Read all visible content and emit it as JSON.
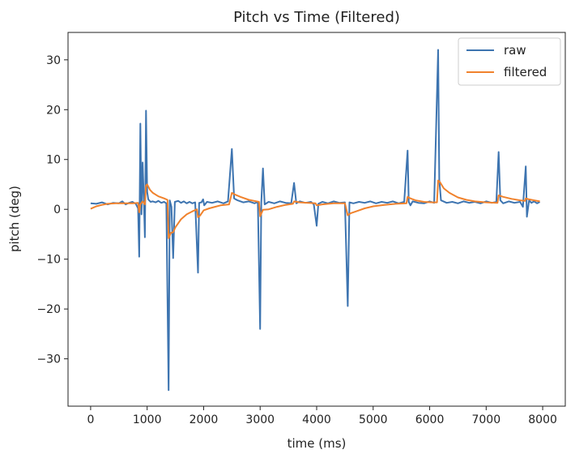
{
  "chart_data": {
    "type": "line",
    "title": "Pitch vs Time (Filtered)",
    "xlabel": "time (ms)",
    "ylabel": "pitch (deg)",
    "xlim": [
      -400,
      8400
    ],
    "ylim": [
      -39.5,
      35.5
    ],
    "xticks": [
      0,
      1000,
      2000,
      3000,
      4000,
      5000,
      6000,
      7000,
      8000
    ],
    "yticks": [
      -30,
      -20,
      -10,
      0,
      10,
      20,
      30
    ],
    "grid": false,
    "legend_position": "top-right",
    "series": [
      {
        "name": "raw",
        "color": "#3d74b0",
        "points": [
          [
            0,
            1.2
          ],
          [
            100,
            1.1
          ],
          [
            200,
            1.4
          ],
          [
            300,
            1.0
          ],
          [
            400,
            1.3
          ],
          [
            500,
            1.2
          ],
          [
            560,
            1.6
          ],
          [
            620,
            1.0
          ],
          [
            680,
            1.3
          ],
          [
            740,
            1.5
          ],
          [
            800,
            1.1
          ],
          [
            840,
            0.2
          ],
          [
            860,
            -9.5
          ],
          [
            880,
            17.2
          ],
          [
            900,
            -1.0
          ],
          [
            920,
            9.4
          ],
          [
            940,
            2.5
          ],
          [
            960,
            -5.6
          ],
          [
            980,
            19.8
          ],
          [
            1000,
            3.5
          ],
          [
            1020,
            2.0
          ],
          [
            1060,
            1.5
          ],
          [
            1100,
            1.6
          ],
          [
            1150,
            1.4
          ],
          [
            1200,
            1.7
          ],
          [
            1250,
            1.3
          ],
          [
            1300,
            1.5
          ],
          [
            1340,
            1.2
          ],
          [
            1380,
            -36.3
          ],
          [
            1400,
            1.8
          ],
          [
            1430,
            0.5
          ],
          [
            1460,
            -9.8
          ],
          [
            1490,
            1.5
          ],
          [
            1550,
            1.7
          ],
          [
            1600,
            1.3
          ],
          [
            1650,
            1.6
          ],
          [
            1700,
            1.2
          ],
          [
            1750,
            1.5
          ],
          [
            1800,
            1.2
          ],
          [
            1850,
            1.4
          ],
          [
            1900,
            -12.7
          ],
          [
            1920,
            1.3
          ],
          [
            1960,
            1.4
          ],
          [
            1990,
            2.0
          ],
          [
            2010,
            0.8
          ],
          [
            2060,
            1.5
          ],
          [
            2150,
            1.3
          ],
          [
            2250,
            1.6
          ],
          [
            2350,
            1.2
          ],
          [
            2430,
            1.6
          ],
          [
            2500,
            12.1
          ],
          [
            2540,
            2.2
          ],
          [
            2600,
            1.8
          ],
          [
            2700,
            1.4
          ],
          [
            2800,
            1.6
          ],
          [
            2900,
            1.2
          ],
          [
            2960,
            1.5
          ],
          [
            3000,
            -24.0
          ],
          [
            3020,
            1.3
          ],
          [
            3050,
            8.2
          ],
          [
            3080,
            1.0
          ],
          [
            3150,
            1.5
          ],
          [
            3250,
            1.2
          ],
          [
            3350,
            1.6
          ],
          [
            3450,
            1.3
          ],
          [
            3550,
            1.2
          ],
          [
            3600,
            5.3
          ],
          [
            3640,
            1.2
          ],
          [
            3700,
            1.6
          ],
          [
            3800,
            1.3
          ],
          [
            3900,
            1.5
          ],
          [
            3950,
            1.0
          ],
          [
            4000,
            -3.3
          ],
          [
            4030,
            1.1
          ],
          [
            4100,
            1.5
          ],
          [
            4200,
            1.2
          ],
          [
            4300,
            1.6
          ],
          [
            4400,
            1.3
          ],
          [
            4500,
            1.4
          ],
          [
            4550,
            -19.4
          ],
          [
            4580,
            1.4
          ],
          [
            4650,
            1.2
          ],
          [
            4750,
            1.5
          ],
          [
            4850,
            1.3
          ],
          [
            4950,
            1.6
          ],
          [
            5050,
            1.2
          ],
          [
            5150,
            1.5
          ],
          [
            5250,
            1.3
          ],
          [
            5350,
            1.6
          ],
          [
            5450,
            1.2
          ],
          [
            5550,
            1.5
          ],
          [
            5610,
            11.8
          ],
          [
            5630,
            1.5
          ],
          [
            5660,
            0.8
          ],
          [
            5700,
            1.6
          ],
          [
            5800,
            1.3
          ],
          [
            5900,
            1.2
          ],
          [
            6000,
            1.6
          ],
          [
            6080,
            1.3
          ],
          [
            6150,
            32.0
          ],
          [
            6170,
            6.0
          ],
          [
            6200,
            1.8
          ],
          [
            6300,
            1.3
          ],
          [
            6400,
            1.5
          ],
          [
            6500,
            1.2
          ],
          [
            6600,
            1.6
          ],
          [
            6700,
            1.3
          ],
          [
            6800,
            1.5
          ],
          [
            6900,
            1.2
          ],
          [
            7000,
            1.6
          ],
          [
            7100,
            1.3
          ],
          [
            7180,
            1.5
          ],
          [
            7220,
            11.5
          ],
          [
            7250,
            1.8
          ],
          [
            7300,
            1.2
          ],
          [
            7400,
            1.6
          ],
          [
            7500,
            1.3
          ],
          [
            7600,
            1.5
          ],
          [
            7650,
            0.5
          ],
          [
            7700,
            8.6
          ],
          [
            7720,
            -1.5
          ],
          [
            7760,
            1.8
          ],
          [
            7800,
            1.3
          ],
          [
            7850,
            1.6
          ],
          [
            7900,
            1.2
          ],
          [
            7950,
            1.5
          ]
        ]
      },
      {
        "name": "filtered",
        "color": "#f0822d",
        "points": [
          [
            0,
            0.1
          ],
          [
            100,
            0.6
          ],
          [
            200,
            0.9
          ],
          [
            300,
            1.1
          ],
          [
            450,
            1.2
          ],
          [
            600,
            1.2
          ],
          [
            750,
            1.2
          ],
          [
            840,
            1.3
          ],
          [
            860,
            -0.6
          ],
          [
            880,
            1.0
          ],
          [
            920,
            1.6
          ],
          [
            960,
            1.0
          ],
          [
            980,
            4.8
          ],
          [
            1000,
            5.0
          ],
          [
            1050,
            3.9
          ],
          [
            1100,
            3.3
          ],
          [
            1200,
            2.6
          ],
          [
            1300,
            2.2
          ],
          [
            1360,
            1.9
          ],
          [
            1380,
            -5.8
          ],
          [
            1420,
            -4.7
          ],
          [
            1460,
            -4.6
          ],
          [
            1500,
            -3.6
          ],
          [
            1600,
            -2.0
          ],
          [
            1700,
            -1.0
          ],
          [
            1800,
            -0.4
          ],
          [
            1880,
            0.0
          ],
          [
            1900,
            -1.6
          ],
          [
            1940,
            -1.2
          ],
          [
            2000,
            -0.2
          ],
          [
            2100,
            0.2
          ],
          [
            2200,
            0.5
          ],
          [
            2300,
            0.8
          ],
          [
            2450,
            1.0
          ],
          [
            2500,
            3.3
          ],
          [
            2550,
            3.0
          ],
          [
            2650,
            2.5
          ],
          [
            2800,
            1.9
          ],
          [
            2980,
            1.5
          ],
          [
            3000,
            -1.4
          ],
          [
            3050,
            -0.1
          ],
          [
            3150,
            0.0
          ],
          [
            3300,
            0.5
          ],
          [
            3450,
            0.9
          ],
          [
            3580,
            1.1
          ],
          [
            3600,
            1.6
          ],
          [
            3700,
            1.4
          ],
          [
            3850,
            1.3
          ],
          [
            3980,
            1.2
          ],
          [
            4000,
            0.8
          ],
          [
            4100,
            1.0
          ],
          [
            4300,
            1.2
          ],
          [
            4500,
            1.2
          ],
          [
            4550,
            -1.2
          ],
          [
            4600,
            -0.8
          ],
          [
            4700,
            -0.4
          ],
          [
            4850,
            0.2
          ],
          [
            5000,
            0.6
          ],
          [
            5200,
            0.9
          ],
          [
            5400,
            1.1
          ],
          [
            5590,
            1.2
          ],
          [
            5610,
            2.5
          ],
          [
            5660,
            2.2
          ],
          [
            5750,
            1.8
          ],
          [
            5900,
            1.5
          ],
          [
            6050,
            1.4
          ],
          [
            6130,
            1.4
          ],
          [
            6150,
            5.8
          ],
          [
            6180,
            5.5
          ],
          [
            6250,
            4.2
          ],
          [
            6350,
            3.3
          ],
          [
            6500,
            2.4
          ],
          [
            6650,
            1.9
          ],
          [
            6800,
            1.6
          ],
          [
            7000,
            1.4
          ],
          [
            7200,
            1.3
          ],
          [
            7220,
            2.8
          ],
          [
            7300,
            2.5
          ],
          [
            7450,
            2.1
          ],
          [
            7600,
            1.8
          ],
          [
            7690,
            1.7
          ],
          [
            7700,
            2.2
          ],
          [
            7760,
            2.0
          ],
          [
            7850,
            1.8
          ],
          [
            7950,
            1.6
          ]
        ]
      }
    ]
  }
}
